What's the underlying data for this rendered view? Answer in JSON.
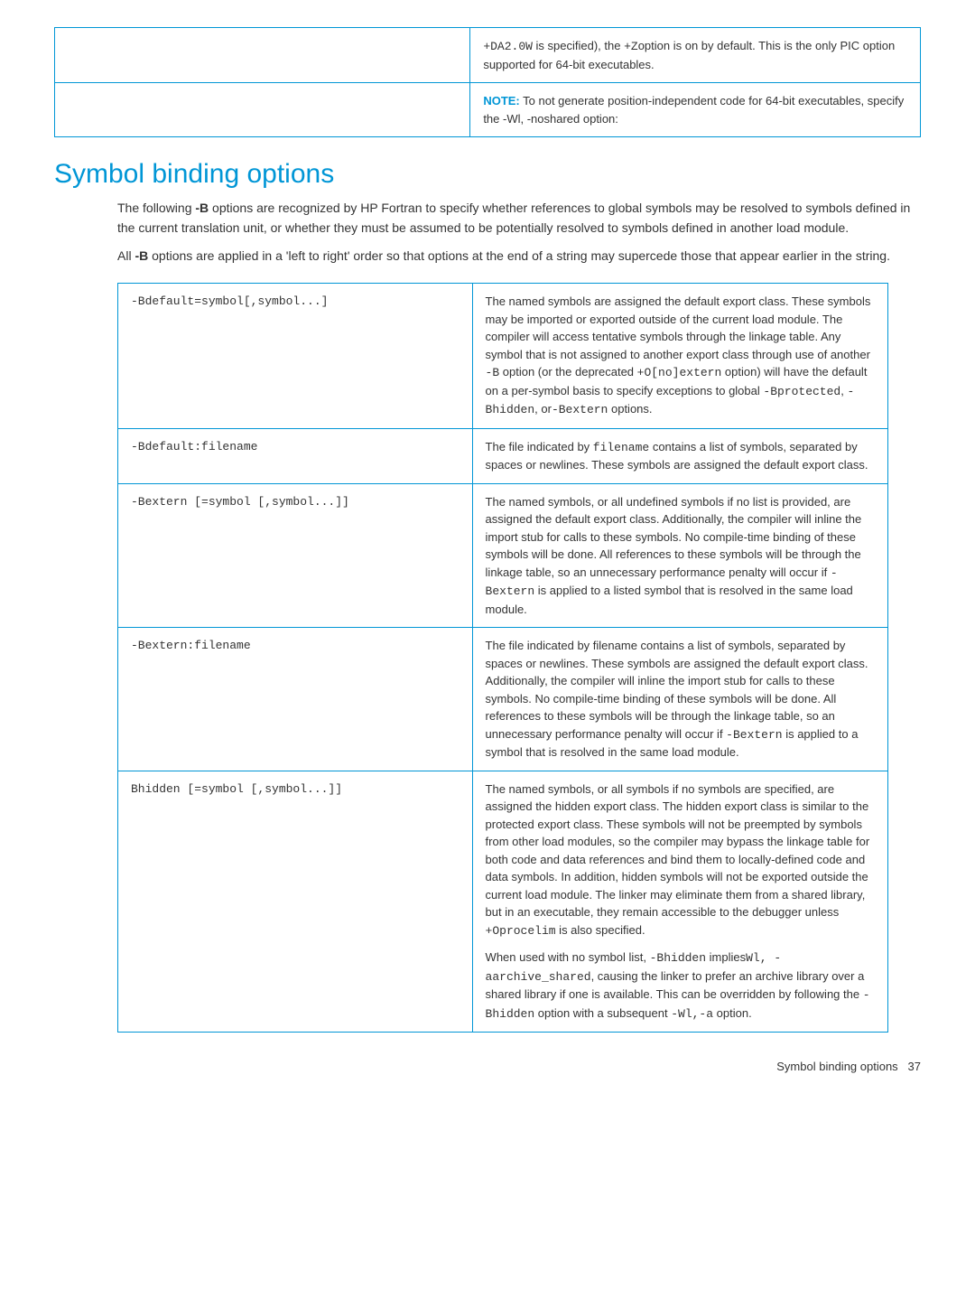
{
  "topTable": {
    "row1_right": {
      "p1_code1": "+DA2.0W",
      "p1_text1": " is specified), the ",
      "p1_code2": "+Z",
      "p1_text2": "option is on by default. This is the only PIC option supported for 64-bit executables."
    },
    "row2_right": {
      "note": "NOTE:",
      "text": "   To not generate position-independent code for 64-bit executables, specify the -Wl, -noshared option:"
    }
  },
  "heading": "Symbol binding options",
  "intro": {
    "p1_a": "The following ",
    "p1_bold": "-B",
    "p1_b": " options are recognized by HP Fortran to specify whether references to global symbols may be resolved to symbols defined in the current translation unit, or whether they must be assumed to be potentially resolved to symbols defined in another load module.",
    "p2_a": "All ",
    "p2_bold": "-B",
    "p2_b": " options are applied in a 'left to right' order so that options at the end of a string may supercede those that appear earlier in the string."
  },
  "rows": [
    {
      "opt": "-Bdefault=symbol[,symbol...]",
      "desc": {
        "t1": "The named symbols are assigned the default export class. These symbols may be imported or exported outside of the current load module. The compiler will access tentative symbols through the linkage table. Any symbol that is not assigned to another export class through use of another ",
        "c1": "-B",
        "t2": " option (or the deprecated ",
        "c2": "+O[no]extern",
        "t3": " option) will have the default on a per-symbol basis to specify exceptions to global ",
        "c3": "-Bprotected",
        "t4": ", ",
        "c4": "-Bhidden",
        "t5": ", or",
        "c5": "-Bextern",
        "t6": " options."
      }
    },
    {
      "opt": "-Bdefault:filename",
      "desc": {
        "t1": "The file indicated by ",
        "c1": "filename",
        "t2": " contains a list of symbols, separated by spaces or newlines. These symbols are assigned the default export class."
      }
    },
    {
      "opt": "-Bextern [=symbol [,symbol...]]",
      "desc": {
        "t1": "The named symbols, or all undefined symbols if no list is provided, are assigned the default export class. Additionally, the compiler will inline the import stub for calls to these symbols. No compile-time binding of these symbols will be done. All references to these symbols will be through the linkage table, so an unnecessary performance penalty will occur if ",
        "c1": "-Bextern",
        "t2": " is applied to a listed symbol that is resolved in the same load module."
      }
    },
    {
      "opt": "-Bextern:filename",
      "desc": {
        "t1": "The file indicated by filename contains a list of symbols, separated by spaces or newlines. These symbols are assigned the default export class. Additionally, the compiler will inline the import stub for calls to these symbols. No compile-time binding of these symbols will be done. All references to these symbols will be through the linkage table, so an unnecessary performance penalty will occur if ",
        "c1": "-Bextern",
        "t2": " is applied to a symbol that is resolved in the same load module."
      }
    },
    {
      "opt": "Bhidden [=symbol [,symbol...]]",
      "desc": {
        "p1_t1": "The named symbols, or all symbols if no symbols are specified, are assigned the hidden export class. The hidden export class is similar to the protected export class. These symbols will not be preempted by symbols from other load modules, so the compiler may bypass the linkage table for both code and data references and bind them to locally-defined code and data symbols. In addition, hidden symbols will not be exported outside the current load module. The linker may eliminate them from a shared library, but in an executable, they remain accessible to the debugger unless ",
        "p1_c1": "+Oprocelim",
        "p1_t2": " is also specified.",
        "p2_t1": "When used with no symbol list, ",
        "p2_c1": "-Bhidden",
        "p2_t2": " implies",
        "p2_c2": "Wl, -aarchive_shared",
        "p2_t3": ", causing the linker to prefer an archive library over a shared library if one is available. This can be overridden by following the ",
        "p2_c3": "-Bhidden",
        "p2_t4": " option with a subsequent ",
        "p2_c4": "-Wl,-a",
        "p2_t5": " option."
      }
    }
  ],
  "footer": {
    "text": "Symbol binding options",
    "page": "37"
  }
}
